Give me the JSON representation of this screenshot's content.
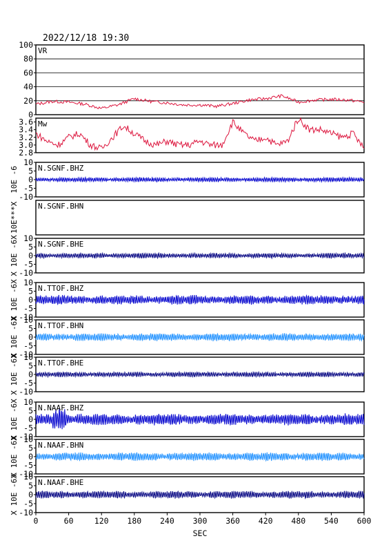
{
  "header": {
    "datetime": "2022/12/18  19:30"
  },
  "colors": {
    "vr": "#dc143c",
    "mw": "#dc143c",
    "bhz": "#0000cd",
    "bhn": "#1e90ff",
    "bhe": "#000080",
    "frame": "#000000"
  },
  "chart_data": [
    {
      "type": "line",
      "label": "VR",
      "ylim": [
        0,
        100
      ],
      "yticks": [
        "100",
        "80",
        "60",
        "40",
        "20",
        "0"
      ],
      "grid": true,
      "x": [
        0,
        30,
        60,
        90,
        120,
        150,
        180,
        210,
        240,
        270,
        300,
        330,
        360,
        390,
        420,
        450,
        480,
        510,
        540,
        570,
        600
      ],
      "values": [
        15,
        19,
        18,
        15,
        9,
        14,
        23,
        19,
        17,
        14,
        14,
        12,
        16,
        21,
        23,
        27,
        18,
        21,
        22,
        21,
        18
      ]
    },
    {
      "type": "line",
      "label": "Mw",
      "ylim": [
        2.8,
        3.7
      ],
      "yticks": [
        "3.6",
        "3.4",
        "3.2",
        "3.0",
        "2.8"
      ],
      "x": [
        0,
        20,
        40,
        60,
        80,
        100,
        120,
        140,
        160,
        180,
        200,
        220,
        240,
        260,
        280,
        300,
        320,
        340,
        360,
        380,
        400,
        420,
        440,
        460,
        480,
        500,
        520,
        540,
        560,
        580,
        600
      ],
      "values": [
        3.3,
        3.1,
        3.0,
        3.2,
        3.3,
        3.0,
        2.9,
        3.2,
        3.5,
        3.3,
        3.1,
        3.0,
        3.1,
        3.0,
        3.0,
        3.1,
        3.0,
        3.0,
        3.6,
        3.3,
        3.1,
        3.2,
        3.0,
        3.1,
        3.7,
        3.4,
        3.4,
        3.3,
        3.2,
        3.3,
        2.9
      ]
    },
    {
      "type": "line",
      "label": "N.SGNF.BHZ",
      "ylim": [
        -10,
        10
      ],
      "yticks": [
        "10",
        "5",
        "0",
        "-5",
        "-10"
      ],
      "amplitude": 0.9,
      "has_data": true
    },
    {
      "type": "line",
      "label": "N.SGNF.BHN",
      "ylim": [
        -10,
        10
      ],
      "yticks": [],
      "has_data": false
    },
    {
      "type": "line",
      "label": "N.SGNF.BHE",
      "ylim": [
        -10,
        10
      ],
      "yticks": [
        "10",
        "5",
        "0",
        "-5",
        "-10"
      ],
      "amplitude": 1.0,
      "has_data": true
    },
    {
      "type": "line",
      "label": "N.TTOF.BHZ",
      "ylim": [
        -10,
        10
      ],
      "yticks": [
        "10",
        "5",
        "0",
        "-5",
        "-10"
      ],
      "amplitude": 1.8,
      "has_data": true
    },
    {
      "type": "line",
      "label": "N.TTOF.BHN",
      "ylim": [
        -10,
        10
      ],
      "yticks": [
        "10",
        "5",
        "0",
        "-5",
        "-10"
      ],
      "amplitude": 1.5,
      "has_data": true
    },
    {
      "type": "line",
      "label": "N.TTOF.BHE",
      "ylim": [
        -10,
        10
      ],
      "yticks": [
        "10",
        "5",
        "0",
        "-5",
        "-10"
      ],
      "amplitude": 1.0,
      "has_data": true
    },
    {
      "type": "line",
      "label": "N.NAAF.BHZ",
      "ylim": [
        -10,
        10
      ],
      "yticks": [
        "10",
        "5",
        "0",
        "-5",
        "-10"
      ],
      "amplitude": 2.2,
      "has_data": true
    },
    {
      "type": "line",
      "label": "N.NAAF.BHN",
      "ylim": [
        -10,
        10
      ],
      "yticks": [
        "10",
        "5",
        "0",
        "-5",
        "-10"
      ],
      "amplitude": 1.6,
      "has_data": true
    },
    {
      "type": "line",
      "label": "N.NAAF.BHE",
      "ylim": [
        -10,
        10
      ],
      "yticks": [
        "10",
        "5",
        "0",
        "-5",
        "-10"
      ],
      "amplitude": 1.4,
      "has_data": true
    }
  ],
  "ylabels": [
    {
      "text": "10E -6",
      "panel": 2
    },
    {
      "text": "10E***X",
      "panel": 3
    },
    {
      "text": "X 10E -6X",
      "panel": 4
    },
    {
      "text": "X 10E -6X",
      "panel": 5
    },
    {
      "text": "X 10E -6X",
      "panel": 6
    },
    {
      "text": "X 10E -6X",
      "panel": 7
    },
    {
      "text": "X 10E -6X",
      "panel": 8
    },
    {
      "text": "X 10E -6X",
      "panel": 9
    },
    {
      "text": "X 10E -6X",
      "panel": 10
    }
  ],
  "xaxis": {
    "xlim": [
      0,
      600
    ],
    "ticks": [
      "0",
      "60",
      "120",
      "180",
      "240",
      "300",
      "360",
      "420",
      "480",
      "540",
      "600"
    ],
    "label": "SEC"
  }
}
